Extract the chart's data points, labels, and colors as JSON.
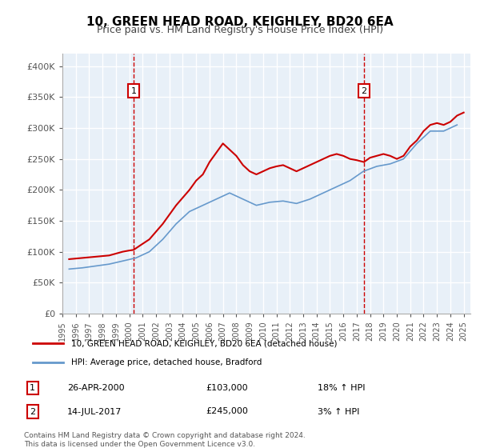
{
  "title": "10, GREEN HEAD ROAD, KEIGHLEY, BD20 6EA",
  "subtitle": "Price paid vs. HM Land Registry's House Price Index (HPI)",
  "legend_line1": "10, GREEN HEAD ROAD, KEIGHLEY, BD20 6EA (detached house)",
  "legend_line2": "HPI: Average price, detached house, Bradford",
  "annotation1_label": "1",
  "annotation1_date": "26-APR-2000",
  "annotation1_price": "£103,000",
  "annotation1_hpi": "18% ↑ HPI",
  "annotation1_year": 2000.32,
  "annotation1_value": 103000,
  "annotation2_label": "2",
  "annotation2_date": "14-JUL-2017",
  "annotation2_price": "£245,000",
  "annotation2_hpi": "3% ↑ HPI",
  "annotation2_year": 2017.54,
  "annotation2_value": 245000,
  "footer": "Contains HM Land Registry data © Crown copyright and database right 2024.\nThis data is licensed under the Open Government Licence v3.0.",
  "xlim": [
    1995,
    2025.5
  ],
  "ylim": [
    0,
    420000
  ],
  "yticks": [
    0,
    50000,
    100000,
    150000,
    200000,
    250000,
    300000,
    350000,
    400000
  ],
  "ytick_labels": [
    "£0",
    "£50K",
    "£100K",
    "£150K",
    "£200K",
    "£250K",
    "£300K",
    "£350K",
    "£400K"
  ],
  "bg_color": "#e8f0f8",
  "grid_color": "#ffffff",
  "red_color": "#cc0000",
  "blue_color": "#6699cc",
  "vline_color": "#cc0000",
  "box_color": "#cc0000"
}
